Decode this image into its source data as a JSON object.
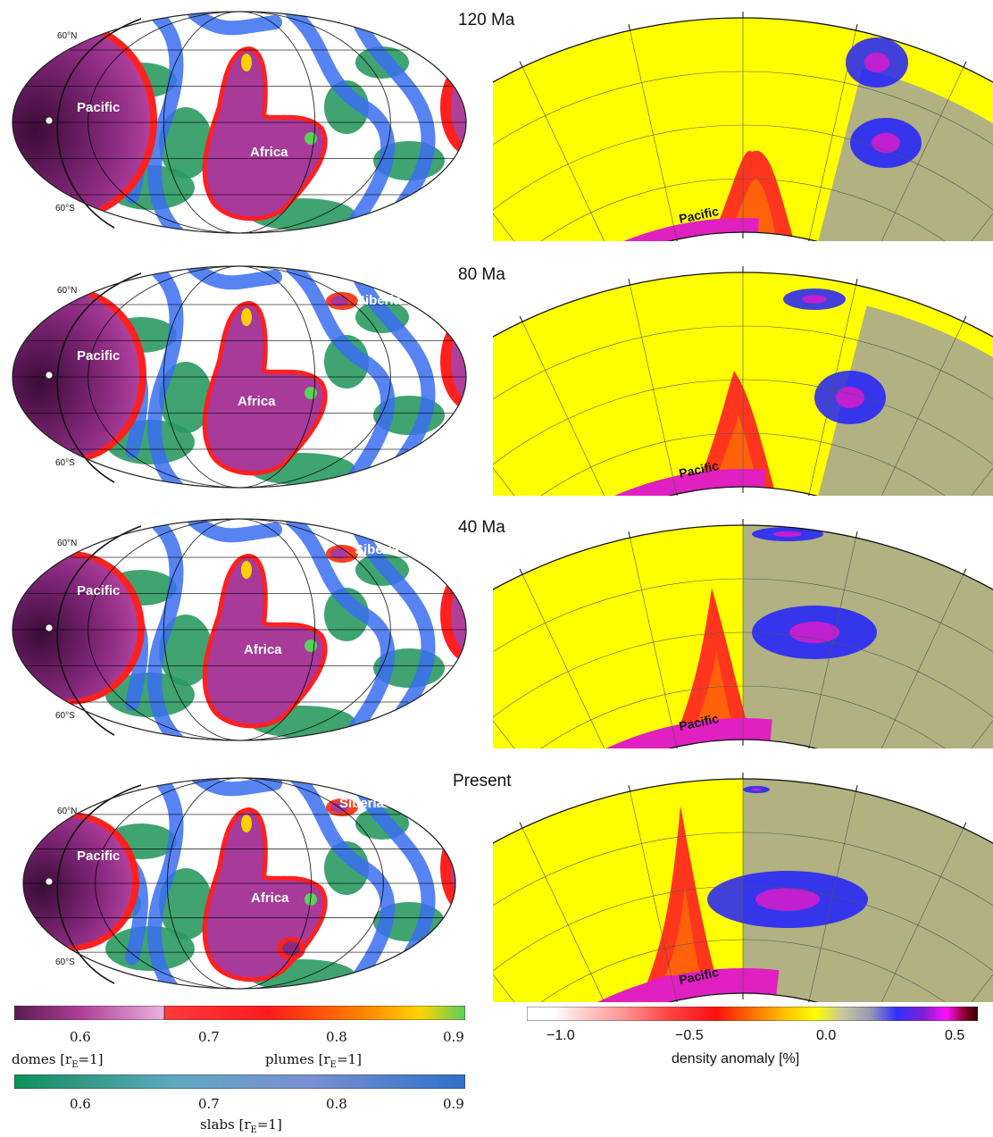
{
  "panels": [
    {
      "time": "120 Ma",
      "map_labels": [
        "Pacific",
        "Africa"
      ],
      "lat_north": "60°N",
      "lat_south": "60°S",
      "section_label": "Pacific"
    },
    {
      "time": "80 Ma",
      "map_labels": [
        "Pacific",
        "Africa",
        "Siberia"
      ],
      "lat_north": "60°N",
      "lat_south": "60°S",
      "section_label": "Pacific"
    },
    {
      "time": "40 Ma",
      "map_labels": [
        "Pacific",
        "Africa",
        "Siberia"
      ],
      "lat_north": "60°N",
      "lat_south": "60°S",
      "section_label": "Pacific"
    },
    {
      "time": "Present",
      "map_labels": [
        "Pacific",
        "Africa",
        "Siberia"
      ],
      "lat_north": "60°N",
      "lat_south": "60°S",
      "section_label": "Pacific"
    }
  ],
  "colorbars": {
    "domes_plumes": {
      "ticks": [
        "0.6",
        "0.7",
        "0.8",
        "0.9"
      ],
      "domes_label": "domes [r",
      "plumes_label": "plumes [r",
      "subscript": "E",
      "suffix": "=1]",
      "domes_colors": [
        "#5a1a4e",
        "#b03f99",
        "#d77bc4",
        "#e8a4d8"
      ],
      "plumes_colors": [
        "#ff2020",
        "#ff7a00",
        "#ffd000",
        "#5ccf5c"
      ]
    },
    "slabs": {
      "ticks": [
        "0.6",
        "0.7",
        "0.8",
        "0.9"
      ],
      "label": "slabs [r",
      "subscript": "E",
      "suffix": "=1]",
      "colors": [
        "#1a8a5a",
        "#5e9fc8",
        "#7b8fd0",
        "#2f6ec8"
      ]
    },
    "density": {
      "ticks": [
        "−1.0",
        "−0.5",
        "0.0",
        "0.5"
      ],
      "label": "density anomaly [%]",
      "colors": [
        "#ffffff",
        "#ffd0d0",
        "#ffa0a0",
        "#ff5050",
        "#ff1010",
        "#ff6000",
        "#ffb000",
        "#ffff00",
        "#c8c8a0",
        "#a0a0a0",
        "#6060ff",
        "#2020ff",
        "#a020d0",
        "#ff00ff",
        "#a01050",
        "#400000"
      ]
    }
  },
  "colors": {
    "dome": "#a83a9a",
    "plume_red": "#ff2020",
    "slab_blue": "#3a6ef0",
    "slab_green": "#2a9a60",
    "section_yellow": "#ffff00",
    "section_magenta": "#e020c0"
  }
}
